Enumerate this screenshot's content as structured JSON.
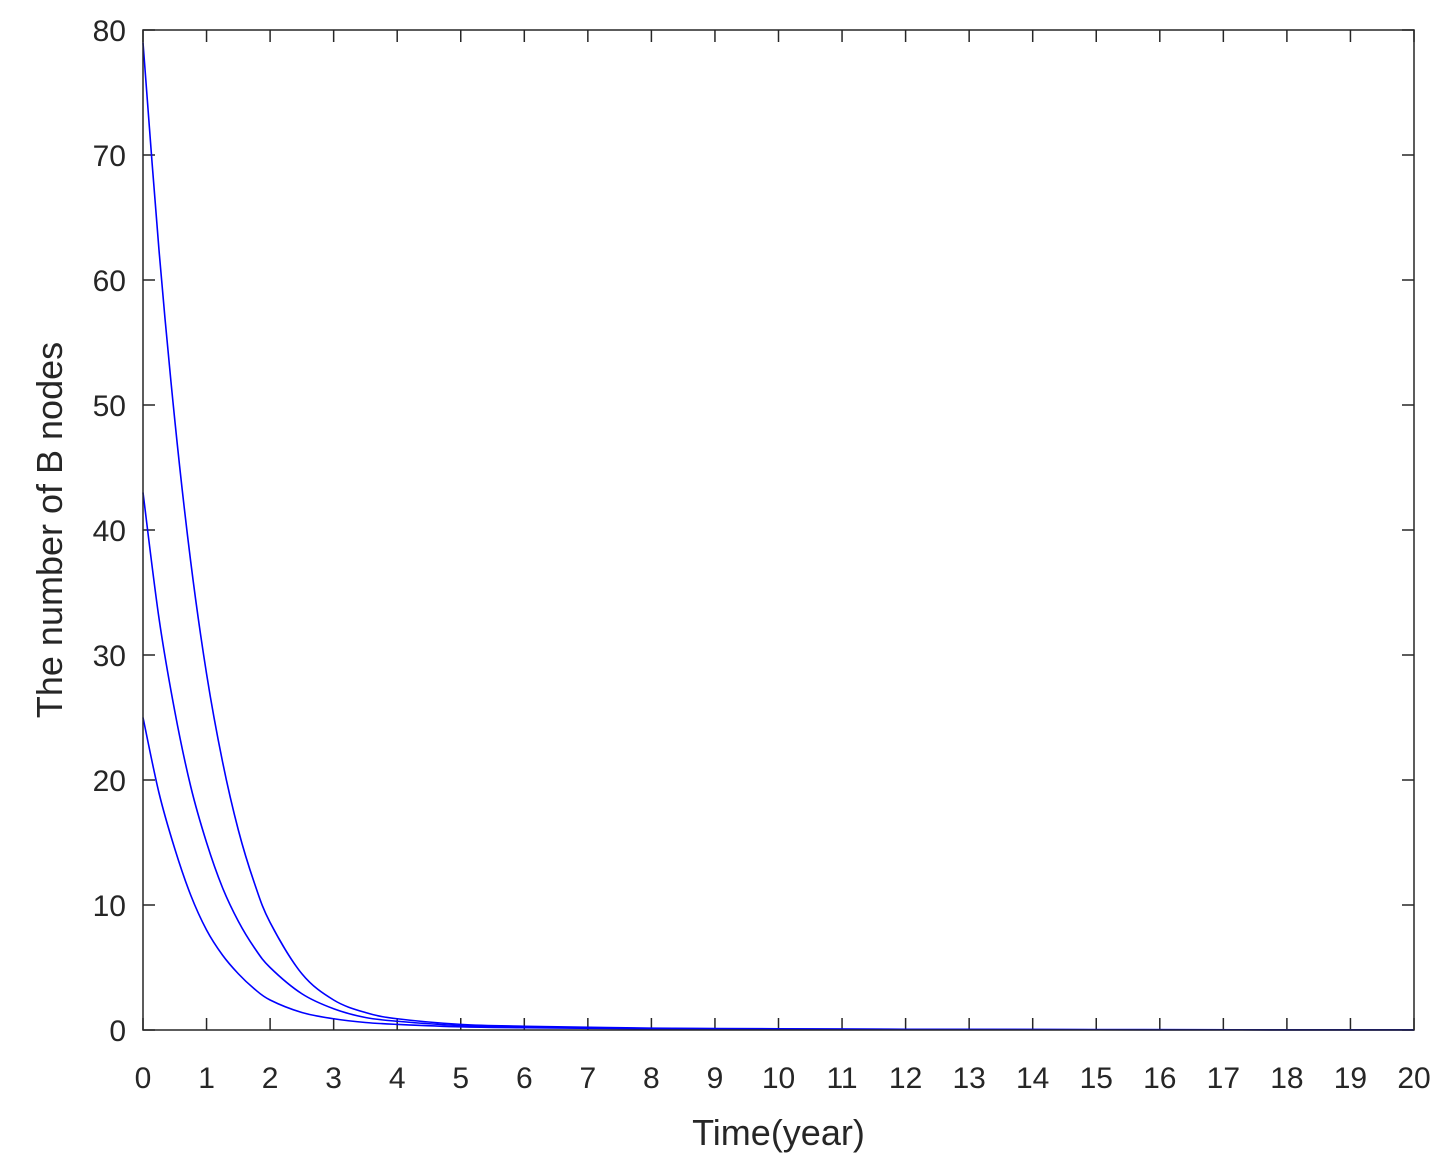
{
  "chart_data": {
    "type": "line",
    "title": "",
    "xlabel": "Time(year)",
    "ylabel": "The number of B nodes",
    "xlim": [
      0,
      20
    ],
    "ylim": [
      0,
      80
    ],
    "xticks": [
      "0",
      "1",
      "2",
      "3",
      "4",
      "5",
      "6",
      "7",
      "8",
      "9",
      "10",
      "11",
      "12",
      "13",
      "14",
      "15",
      "16",
      "17",
      "18",
      "19",
      "20"
    ],
    "yticks": [
      "0",
      "10",
      "20",
      "30",
      "40",
      "50",
      "60",
      "70",
      "80"
    ],
    "grid": false,
    "legend": "none",
    "line_color": "#0000ff",
    "axis_color": "#262626",
    "series": [
      {
        "x": [
          0,
          0.25,
          0.5,
          0.75,
          1,
          1.25,
          1.5,
          1.75,
          2,
          2.5,
          3,
          3.5,
          4,
          5,
          6,
          8,
          10,
          12,
          15,
          20
        ],
        "values": [
          79,
          62.5,
          48.8,
          37.5,
          28.5,
          21.5,
          16,
          11.8,
          8.6,
          4.5,
          2.4,
          1.4,
          0.9,
          0.45,
          0.3,
          0.15,
          0.1,
          0.06,
          0.03,
          0.01
        ]
      },
      {
        "x": [
          0,
          0.25,
          0.5,
          0.75,
          1,
          1.25,
          1.5,
          1.75,
          2,
          2.5,
          3,
          3.5,
          4,
          5,
          6,
          8,
          10,
          12,
          15,
          20
        ],
        "values": [
          43,
          33,
          25.5,
          19.5,
          15,
          11.4,
          8.7,
          6.6,
          5,
          2.9,
          1.7,
          1.0,
          0.7,
          0.35,
          0.22,
          0.12,
          0.08,
          0.05,
          0.03,
          0.01
        ]
      },
      {
        "x": [
          0,
          0.25,
          0.5,
          0.75,
          1,
          1.25,
          1.5,
          1.75,
          2,
          2.5,
          3,
          3.5,
          4,
          5,
          6,
          8,
          10,
          12,
          15,
          20
        ],
        "values": [
          25,
          19,
          14.5,
          10.8,
          8.0,
          6.0,
          4.5,
          3.3,
          2.4,
          1.4,
          0.9,
          0.6,
          0.45,
          0.25,
          0.18,
          0.1,
          0.06,
          0.04,
          0.02,
          0.01
        ]
      }
    ]
  }
}
